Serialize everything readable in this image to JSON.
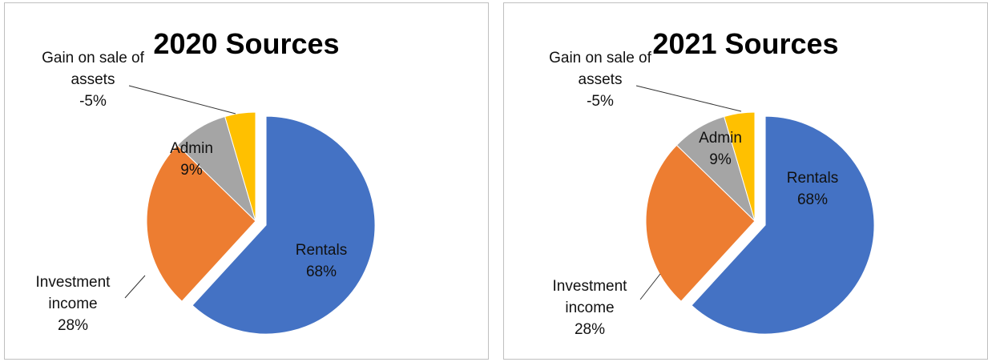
{
  "chart_data": [
    {
      "type": "pie",
      "title": "2020 Sources",
      "categories": [
        "Rentals",
        "Investment income",
        "Admin",
        "Gain on sale of assets"
      ],
      "values": [
        68,
        28,
        9,
        -5
      ],
      "value_labels": [
        "68%",
        "28%",
        "9%",
        "-5%"
      ],
      "colors": [
        "#4472c4",
        "#ed7d31",
        "#a5a5a5",
        "#ffc000"
      ]
    },
    {
      "type": "pie",
      "title": "2021 Sources",
      "categories": [
        "Rentals",
        "Investment income",
        "Admin",
        "Gain on sale of assets"
      ],
      "values": [
        68,
        28,
        9,
        -5
      ],
      "value_labels": [
        "68%",
        "28%",
        "9%",
        "-5%"
      ],
      "colors": [
        "#4472c4",
        "#ed7d31",
        "#a5a5a5",
        "#ffc000"
      ]
    }
  ]
}
